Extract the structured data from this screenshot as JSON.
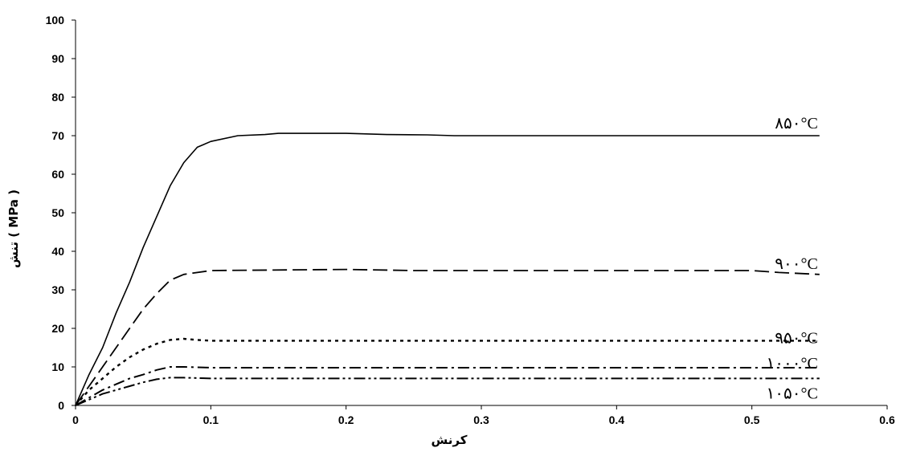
{
  "chart_data": {
    "type": "line",
    "title": "",
    "xlabel": "کرنش",
    "ylabel": "تنش ( MPa )",
    "xlim": [
      0,
      0.6
    ],
    "ylim": [
      0,
      100
    ],
    "xticks": [
      0,
      0.1,
      0.2,
      0.3,
      0.4,
      0.5,
      0.6
    ],
    "xtick_labels": [
      "0",
      "0.1",
      "0.2",
      "0.3",
      "0.4",
      "0.5",
      "0.6"
    ],
    "yticks": [
      0,
      10,
      20,
      30,
      40,
      50,
      60,
      70,
      80,
      90,
      100
    ],
    "ytick_labels": [
      "0",
      "10",
      "20",
      "30",
      "40",
      "50",
      "60",
      "70",
      "80",
      "90",
      "100"
    ],
    "grid": false,
    "legend": "none",
    "series": [
      {
        "name": "۸۵۰°C",
        "line_style": "solid",
        "color": "#000000",
        "points": [
          [
            0,
            0
          ],
          [
            0.01,
            8
          ],
          [
            0.02,
            15
          ],
          [
            0.03,
            24
          ],
          [
            0.04,
            32
          ],
          [
            0.05,
            41
          ],
          [
            0.06,
            49
          ],
          [
            0.07,
            57
          ],
          [
            0.08,
            63
          ],
          [
            0.09,
            67
          ],
          [
            0.1,
            68.5
          ],
          [
            0.12,
            70
          ],
          [
            0.14,
            70.3
          ],
          [
            0.15,
            70.6
          ],
          [
            0.2,
            70.6
          ],
          [
            0.23,
            70.3
          ],
          [
            0.26,
            70.2
          ],
          [
            0.28,
            70
          ],
          [
            0.55,
            70
          ]
        ]
      },
      {
        "name": "۹۰۰°C",
        "line_style": "long-dash",
        "color": "#000000",
        "points": [
          [
            0,
            0
          ],
          [
            0.01,
            5
          ],
          [
            0.02,
            10
          ],
          [
            0.03,
            15
          ],
          [
            0.04,
            20
          ],
          [
            0.05,
            25
          ],
          [
            0.06,
            29
          ],
          [
            0.07,
            32.5
          ],
          [
            0.08,
            34
          ],
          [
            0.1,
            35
          ],
          [
            0.2,
            35.3
          ],
          [
            0.25,
            35
          ],
          [
            0.5,
            35
          ],
          [
            0.52,
            34.5
          ],
          [
            0.55,
            34
          ]
        ]
      },
      {
        "name": "۹۵۰°C",
        "line_style": "dotted",
        "color": "#000000",
        "points": [
          [
            0,
            0
          ],
          [
            0.01,
            4
          ],
          [
            0.02,
            7
          ],
          [
            0.03,
            10
          ],
          [
            0.04,
            12.5
          ],
          [
            0.05,
            14.5
          ],
          [
            0.06,
            16
          ],
          [
            0.07,
            17
          ],
          [
            0.08,
            17.3
          ],
          [
            0.09,
            17
          ],
          [
            0.1,
            16.8
          ],
          [
            0.55,
            16.8
          ]
        ]
      },
      {
        "name": "۱۰۰۰°C",
        "line_style": "dash-dot",
        "color": "#000000",
        "points": [
          [
            0,
            0
          ],
          [
            0.01,
            2
          ],
          [
            0.02,
            4
          ],
          [
            0.03,
            5.5
          ],
          [
            0.04,
            7
          ],
          [
            0.05,
            8
          ],
          [
            0.06,
            9.2
          ],
          [
            0.07,
            10
          ],
          [
            0.08,
            10
          ],
          [
            0.1,
            9.8
          ],
          [
            0.55,
            9.8
          ]
        ]
      },
      {
        "name": "۱۰۵۰°C",
        "line_style": "dash-dot-dot",
        "color": "#000000",
        "points": [
          [
            0,
            0
          ],
          [
            0.01,
            1.5
          ],
          [
            0.02,
            3
          ],
          [
            0.03,
            4
          ],
          [
            0.04,
            5
          ],
          [
            0.05,
            6
          ],
          [
            0.06,
            6.8
          ],
          [
            0.07,
            7.2
          ],
          [
            0.08,
            7.2
          ],
          [
            0.1,
            7
          ],
          [
            0.55,
            7
          ]
        ]
      }
    ]
  }
}
